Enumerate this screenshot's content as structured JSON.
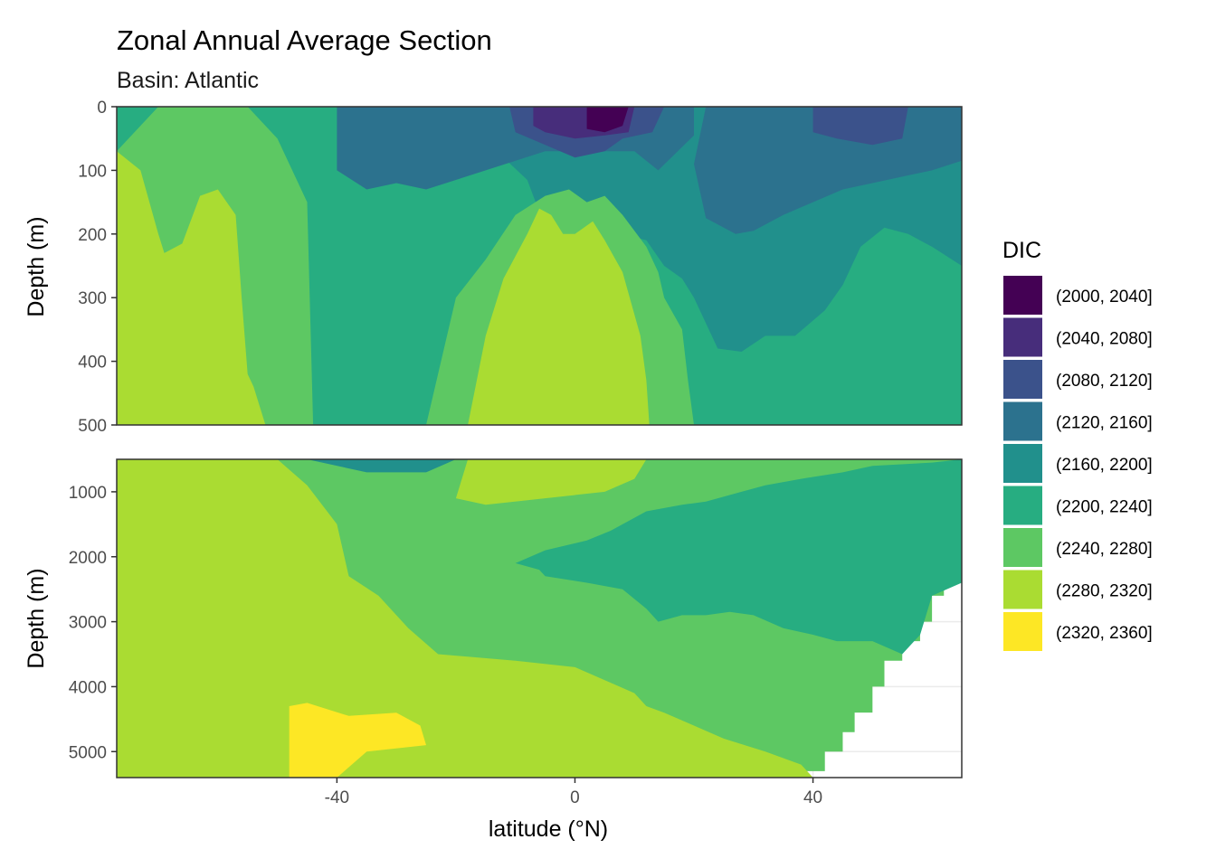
{
  "chart_data": {
    "type": "heatmap",
    "title": "Zonal Annual Average Section",
    "subtitle": "Basin: Atlantic",
    "xlabel": "latitude (°N)",
    "ylabel": "Depth (m)",
    "xlim": [
      -77,
      65
    ],
    "x_ticks": [
      -40,
      0,
      40
    ],
    "x_tick_labels": [
      "-40",
      "0",
      "40"
    ],
    "grid": true,
    "legend_position": "right",
    "legend_title": "DIC",
    "bins": [
      {
        "label": "(2000, 2040]",
        "color": "#440154"
      },
      {
        "label": "(2040, 2080]",
        "color": "#472D7B"
      },
      {
        "label": "(2080, 2120]",
        "color": "#3B528B"
      },
      {
        "label": "(2120, 2160]",
        "color": "#2C728E"
      },
      {
        "label": "(2160, 2200]",
        "color": "#21908C"
      },
      {
        "label": "(2200, 2240]",
        "color": "#27AD81"
      },
      {
        "label": "(2240, 2280]",
        "color": "#5DC863"
      },
      {
        "label": "(2280, 2320]",
        "color": "#AADC32"
      },
      {
        "label": "(2320, 2360]",
        "color": "#FDE725"
      }
    ],
    "panels": [
      {
        "name": "upper",
        "ylim": [
          0,
          500
        ],
        "y_ticks": [
          0,
          100,
          200,
          300,
          400,
          500
        ],
        "y_tick_labels": [
          "0",
          "100",
          "200",
          "300",
          "400",
          "500"
        ],
        "background_bin": 5,
        "regions": [
          {
            "bin": 6,
            "points": [
              [
                -77,
                70
              ],
              [
                -70,
                0
              ],
              [
                -55,
                0
              ],
              [
                -50,
                50
              ],
              [
                -45,
                150
              ],
              [
                -44,
                500
              ],
              [
                -77,
                500
              ]
            ]
          },
          {
            "bin": 7,
            "points": [
              [
                -77,
                70
              ],
              [
                -73,
                100
              ],
              [
                -70,
                200
              ],
              [
                -69,
                230
              ],
              [
                -66,
                215
              ],
              [
                -63,
                140
              ],
              [
                -60,
                130
              ],
              [
                -57,
                170
              ],
              [
                -56,
                300
              ],
              [
                -55,
                420
              ],
              [
                -54,
                440
              ],
              [
                -52,
                500
              ],
              [
                -77,
                500
              ]
            ]
          },
          {
            "bin": 4,
            "points": [
              [
                -56,
                0
              ],
              [
                -20,
                0
              ],
              [
                -19,
                60
              ],
              [
                -16,
                40
              ],
              [
                -15,
                100
              ],
              [
                -12,
                80
              ],
              [
                -8,
                115
              ],
              [
                -5,
                190
              ],
              [
                -2,
                210
              ],
              [
                0,
                175
              ],
              [
                4,
                210
              ],
              [
                8,
                200
              ],
              [
                12,
                210
              ],
              [
                15,
                250
              ],
              [
                18,
                270
              ],
              [
                20,
                300
              ],
              [
                24,
                380
              ],
              [
                28,
                385
              ],
              [
                32,
                360
              ],
              [
                37,
                360
              ],
              [
                42,
                320
              ],
              [
                45,
                280
              ],
              [
                48,
                220
              ],
              [
                52,
                190
              ],
              [
                56,
                200
              ],
              [
                60,
                220
              ],
              [
                65,
                250
              ],
              [
                65,
                0
              ]
            ]
          },
          {
            "bin": 3,
            "points": [
              [
                -40,
                0
              ],
              [
                20,
                0
              ],
              [
                20,
                45
              ],
              [
                14,
                100
              ],
              [
                10,
                70
              ],
              [
                -5,
                70
              ],
              [
                -15,
                100
              ],
              [
                -25,
                130
              ],
              [
                -30,
                120
              ],
              [
                -35,
                130
              ],
              [
                -40,
                100
              ]
            ]
          },
          {
            "bin": 3,
            "points": [
              [
                22,
                0
              ],
              [
                65,
                0
              ],
              [
                65,
                85
              ],
              [
                60,
                100
              ],
              [
                55,
                110
              ],
              [
                50,
                120
              ],
              [
                45,
                130
              ],
              [
                40,
                150
              ],
              [
                35,
                170
              ],
              [
                30,
                195
              ],
              [
                27,
                200
              ],
              [
                22,
                175
              ],
              [
                20,
                90
              ]
            ]
          },
          {
            "bin": 2,
            "points": [
              [
                -11,
                0
              ],
              [
                15,
                0
              ],
              [
                13,
                40
              ],
              [
                8,
                50
              ],
              [
                5,
                70
              ],
              [
                0,
                80
              ],
              [
                -5,
                60
              ],
              [
                -10,
                40
              ]
            ]
          },
          {
            "bin": 2,
            "points": [
              [
                40,
                0
              ],
              [
                56,
                0
              ],
              [
                55,
                50
              ],
              [
                50,
                60
              ],
              [
                44,
                50
              ],
              [
                40,
                40
              ]
            ]
          },
          {
            "bin": 1,
            "points": [
              [
                -7,
                0
              ],
              [
                10,
                0
              ],
              [
                9,
                40
              ],
              [
                5,
                45
              ],
              [
                0,
                50
              ],
              [
                -5,
                40
              ],
              [
                -7,
                30
              ]
            ]
          },
          {
            "bin": 0,
            "points": [
              [
                2,
                0
              ],
              [
                9,
                0
              ],
              [
                8,
                30
              ],
              [
                5,
                40
              ],
              [
                2,
                35
              ]
            ]
          },
          {
            "bin": 6,
            "points": [
              [
                -25,
                500
              ],
              [
                -20,
                300
              ],
              [
                -15,
                240
              ],
              [
                -10,
                170
              ],
              [
                -5,
                140
              ],
              [
                -1,
                130
              ],
              [
                2,
                150
              ],
              [
                5,
                140
              ],
              [
                8,
                170
              ],
              [
                12,
                220
              ],
              [
                14,
                260
              ],
              [
                15,
                300
              ],
              [
                18,
                350
              ],
              [
                19,
                430
              ],
              [
                20,
                500
              ]
            ]
          },
          {
            "bin": 7,
            "points": [
              [
                -18,
                500
              ],
              [
                -15,
                360
              ],
              [
                -12,
                270
              ],
              [
                -8,
                200
              ],
              [
                -6,
                160
              ],
              [
                -4,
                170
              ],
              [
                -2,
                200
              ],
              [
                0,
                200
              ],
              [
                3,
                180
              ],
              [
                5,
                210
              ],
              [
                8,
                260
              ],
              [
                11,
                360
              ],
              [
                12,
                430
              ],
              [
                12.5,
                500
              ]
            ]
          }
        ]
      },
      {
        "name": "lower",
        "ylim": [
          500,
          5400
        ],
        "y_ticks": [
          1000,
          2000,
          3000,
          4000,
          5000
        ],
        "y_tick_labels": [
          "1000",
          "2000",
          "3000",
          "4000",
          "5000"
        ],
        "background_bin": 6,
        "regions": [
          {
            "bin": 7,
            "points": [
              [
                -77,
                500
              ],
              [
                -50,
                500
              ],
              [
                -45,
                900
              ],
              [
                -40,
                1500
              ],
              [
                -38,
                2300
              ],
              [
                -33,
                2600
              ],
              [
                -28,
                3100
              ],
              [
                -23,
                3500
              ],
              [
                -10,
                3600
              ],
              [
                0,
                3700
              ],
              [
                5,
                3900
              ],
              [
                10,
                4100
              ],
              [
                12,
                4300
              ],
              [
                15,
                4400
              ],
              [
                20,
                4600
              ],
              [
                25,
                4800
              ],
              [
                32,
                5000
              ],
              [
                38,
                5200
              ],
              [
                40,
                5400
              ],
              [
                -77,
                5400
              ]
            ]
          },
          {
            "bin": 5,
            "points": [
              [
                -10,
                2100
              ],
              [
                -5,
                1900
              ],
              [
                2,
                1750
              ],
              [
                6,
                1600
              ],
              [
                12,
                1300
              ],
              [
                18,
                1200
              ],
              [
                22,
                1150
              ],
              [
                28,
                1000
              ],
              [
                32,
                900
              ],
              [
                38,
                800
              ],
              [
                45,
                700
              ],
              [
                50,
                600
              ],
              [
                60,
                550
              ],
              [
                65,
                500
              ],
              [
                65,
                2400
              ],
              [
                60,
                2600
              ],
              [
                58,
                3200
              ],
              [
                55,
                3500
              ],
              [
                50,
                3300
              ],
              [
                44,
                3300
              ],
              [
                40,
                3200
              ],
              [
                35,
                3100
              ],
              [
                30,
                2900
              ],
              [
                26,
                2850
              ],
              [
                22,
                2900
              ],
              [
                18,
                2900
              ],
              [
                14,
                3000
              ],
              [
                12,
                2800
              ],
              [
                8,
                2500
              ],
              [
                2,
                2400
              ],
              [
                -5,
                2300
              ],
              [
                -6,
                2200
              ]
            ]
          },
          {
            "bin": 4,
            "points": [
              [
                -45,
                500
              ],
              [
                -20,
                500
              ],
              [
                -25,
                700
              ],
              [
                -35,
                700
              ]
            ]
          },
          {
            "bin": 7,
            "points": [
              [
                -18,
                500
              ],
              [
                12,
                500
              ],
              [
                10,
                800
              ],
              [
                5,
                1000
              ],
              [
                -15,
                1200
              ],
              [
                -20,
                1100
              ]
            ]
          },
          {
            "bin": 8,
            "points": [
              [
                -48,
                4300
              ],
              [
                -45,
                4250
              ],
              [
                -38,
                4450
              ],
              [
                -30,
                4400
              ],
              [
                -26,
                4600
              ],
              [
                -25,
                4900
              ],
              [
                -35,
                5000
              ],
              [
                -40,
                5400
              ],
              [
                -48,
                5400
              ]
            ]
          }
        ]
      }
    ]
  }
}
